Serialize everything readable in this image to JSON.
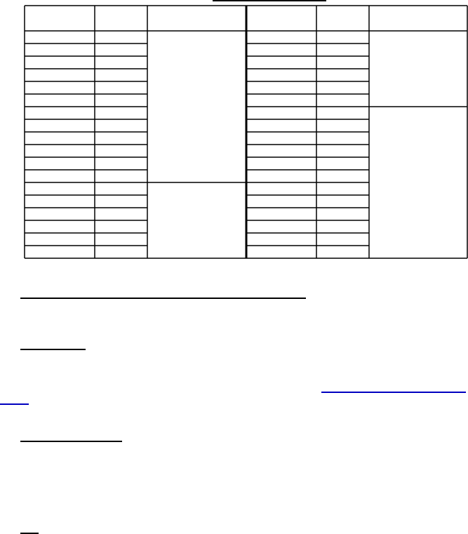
{
  "document": {
    "table": {
      "header_rows": 1,
      "body_rows": 18,
      "columns": 6,
      "left_group_merged_spans": [
        12,
        6
      ],
      "right_group_merged_spans": [
        6,
        12
      ]
    },
    "colors": {
      "text": "#000000",
      "link": "#0000c0"
    }
  }
}
